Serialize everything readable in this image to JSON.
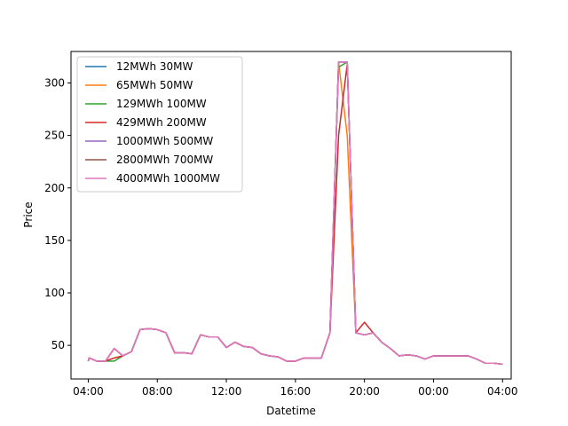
{
  "chart_data": {
    "type": "line",
    "title": "",
    "xlabel": "Datetime",
    "ylabel": "Price",
    "xticks": [
      "04:00",
      "08:00",
      "12:00",
      "16:00",
      "20:00",
      "00:00",
      "04:00"
    ],
    "yticks": [
      50,
      100,
      150,
      200,
      250,
      300
    ],
    "ylim": [
      18,
      330
    ],
    "xlim_hours": [
      3.0,
      28.5
    ],
    "grid": false,
    "legend_position": "upper-left",
    "x_hours": [
      4.0,
      4.05,
      4.5,
      5.0,
      5.5,
      6.0,
      6.5,
      7.0,
      7.5,
      8.0,
      8.5,
      9.0,
      9.5,
      10.0,
      10.5,
      11.0,
      11.5,
      12.0,
      12.5,
      13.0,
      13.5,
      14.0,
      14.5,
      15.0,
      15.5,
      16.0,
      16.5,
      17.0,
      17.5,
      18.0,
      18.5,
      19.0,
      19.5,
      20.0,
      20.5,
      21.0,
      21.5,
      22.0,
      22.5,
      23.0,
      23.5,
      24.0,
      24.5,
      25.0,
      25.5,
      26.0,
      26.5,
      27.0,
      27.5,
      28.0
    ],
    "series": [
      {
        "name": "12MWh 30MW",
        "color": "#1f77b4",
        "values": [
          35,
          38,
          35,
          35,
          47,
          40,
          44,
          65,
          66,
          65,
          62,
          43,
          43,
          42,
          60,
          58,
          58,
          48,
          53,
          49,
          48,
          42,
          40,
          39,
          35,
          35,
          38,
          38,
          38,
          62,
          320,
          320,
          62,
          60,
          62,
          53,
          47,
          40,
          41,
          40,
          37,
          40,
          40,
          40,
          40,
          40,
          37,
          33,
          33,
          32
        ]
      },
      {
        "name": "65MWh 50MW",
        "color": "#ff7f0e",
        "values": [
          35,
          38,
          35,
          35,
          47,
          40,
          44,
          65,
          66,
          65,
          62,
          43,
          43,
          42,
          60,
          58,
          58,
          48,
          53,
          49,
          48,
          42,
          40,
          39,
          35,
          35,
          38,
          38,
          38,
          62,
          320,
          250,
          62,
          60,
          62,
          53,
          47,
          40,
          41,
          40,
          37,
          40,
          40,
          40,
          40,
          40,
          37,
          33,
          33,
          32
        ]
      },
      {
        "name": "129MWh 100MW",
        "color": "#2ca02c",
        "values": [
          35,
          38,
          35,
          35,
          35,
          40,
          44,
          65,
          66,
          65,
          62,
          43,
          43,
          42,
          60,
          58,
          58,
          48,
          53,
          49,
          48,
          42,
          40,
          39,
          35,
          35,
          38,
          38,
          38,
          62,
          315,
          320,
          62,
          60,
          62,
          53,
          47,
          40,
          41,
          40,
          37,
          40,
          40,
          40,
          40,
          40,
          37,
          33,
          33,
          32
        ]
      },
      {
        "name": "429MWh 200MW",
        "color": "#d62728",
        "values": [
          35,
          38,
          35,
          35,
          38,
          40,
          44,
          65,
          66,
          65,
          62,
          43,
          43,
          42,
          60,
          58,
          58,
          48,
          53,
          49,
          48,
          42,
          40,
          39,
          35,
          35,
          38,
          38,
          38,
          62,
          250,
          318,
          62,
          72,
          62,
          53,
          47,
          40,
          41,
          40,
          37,
          40,
          40,
          40,
          40,
          40,
          37,
          33,
          33,
          32
        ]
      },
      {
        "name": "1000MWh 500MW",
        "color": "#9467bd",
        "values": [
          35,
          38,
          35,
          35,
          47,
          40,
          44,
          65,
          66,
          65,
          62,
          43,
          43,
          42,
          60,
          58,
          58,
          48,
          53,
          49,
          48,
          42,
          40,
          39,
          35,
          35,
          38,
          38,
          38,
          62,
          320,
          320,
          62,
          60,
          62,
          53,
          47,
          40,
          41,
          40,
          37,
          40,
          40,
          40,
          40,
          40,
          37,
          33,
          33,
          32
        ]
      },
      {
        "name": "2800MWh 700MW",
        "color": "#8c564b",
        "values": [
          35,
          38,
          35,
          35,
          47,
          40,
          44,
          65,
          66,
          65,
          62,
          43,
          43,
          42,
          60,
          58,
          58,
          48,
          53,
          49,
          48,
          42,
          40,
          39,
          35,
          35,
          38,
          38,
          38,
          62,
          320,
          320,
          62,
          60,
          62,
          53,
          47,
          40,
          41,
          40,
          37,
          40,
          40,
          40,
          40,
          40,
          37,
          33,
          33,
          32
        ]
      },
      {
        "name": "4000MWh 1000MW",
        "color": "#e377c2",
        "values": [
          35,
          38,
          35,
          35,
          47,
          40,
          44,
          65,
          66,
          65,
          62,
          43,
          43,
          42,
          60,
          58,
          58,
          48,
          53,
          49,
          48,
          42,
          40,
          39,
          35,
          35,
          38,
          38,
          38,
          62,
          320,
          320,
          62,
          60,
          62,
          53,
          47,
          40,
          41,
          40,
          37,
          40,
          40,
          40,
          40,
          40,
          37,
          33,
          33,
          32
        ]
      }
    ]
  }
}
